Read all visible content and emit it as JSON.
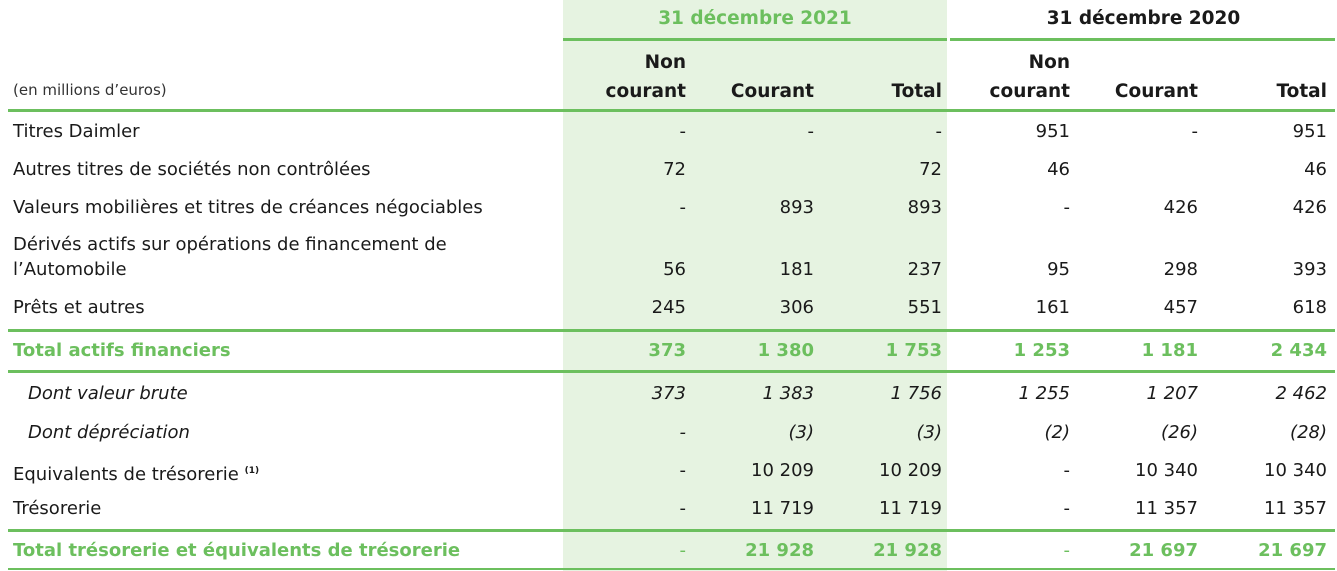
{
  "header": {
    "period_2021": "31 décembre 2021",
    "period_2020": "31 décembre 2020",
    "unit_label": "(en millions d’euros)",
    "col_noncourant_l1": "Non",
    "col_noncourant_l2": "courant",
    "col_courant": "Courant",
    "col_total": "Total"
  },
  "rows": [
    {
      "label": "Titres Daimler",
      "values": [
        "-",
        "-",
        "-",
        "951",
        "-",
        "951"
      ]
    },
    {
      "label": "Autres titres de sociétés non contrôlées",
      "values": [
        "72",
        "",
        "72",
        "46",
        "",
        "46"
      ]
    },
    {
      "label": "Valeurs mobilières et titres de créances négociables",
      "values": [
        "-",
        "893",
        "893",
        "-",
        "426",
        "426"
      ]
    },
    {
      "label_l1": "Dérivés actifs sur opérations de financement de",
      "label_l2": "l’Automobile",
      "values": [
        "56",
        "181",
        "237",
        "95",
        "298",
        "393"
      ]
    },
    {
      "label": "Prêts et autres",
      "values": [
        "245",
        "306",
        "551",
        "161",
        "457",
        "618"
      ]
    },
    {
      "label": "Total actifs financiers",
      "values": [
        "373",
        "1 380",
        "1 753",
        "1 253",
        "1 181",
        "2 434"
      ]
    },
    {
      "label": "Dont valeur brute",
      "values": [
        "373",
        "1 383",
        "1 756",
        "1 255",
        "1 207",
        "2 462"
      ]
    },
    {
      "label": "Dont dépréciation",
      "values": [
        "-",
        "(3)",
        "(3)",
        "(2)",
        "(26)",
        "(28)"
      ]
    },
    {
      "label": "Equivalents de trésorerie",
      "footnote": "(1)",
      "values": [
        "-",
        "10 209",
        "10 209",
        "-",
        "10 340",
        "10 340"
      ]
    },
    {
      "label": "Trésorerie",
      "values": [
        "-",
        "11 719",
        "11 719",
        "-",
        "11 357",
        "11 357"
      ]
    },
    {
      "label": "Total trésorerie et équivalents de trésorerie",
      "values": [
        "-",
        "21 928",
        "21 928",
        "-",
        "21 697",
        "21 697"
      ]
    }
  ]
}
